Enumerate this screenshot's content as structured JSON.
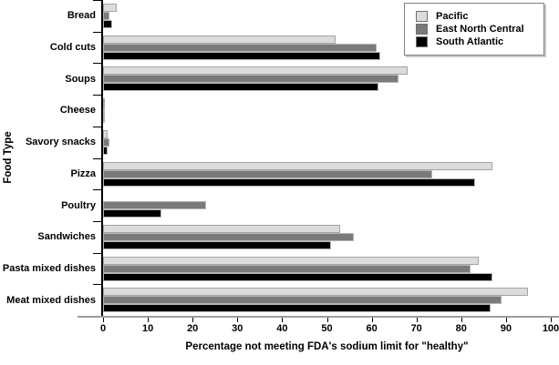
{
  "chart_data": {
    "type": "bar",
    "orientation": "horizontal",
    "title": "",
    "xlabel": "Percentage not meeting FDA's sodium limit for \"healthy\"",
    "ylabel": "Food Type",
    "xlim": [
      0,
      100
    ],
    "xticks": [
      0,
      10,
      20,
      30,
      40,
      50,
      60,
      70,
      80,
      90,
      100
    ],
    "grid": false,
    "legend_position": "top-right",
    "categories": [
      "Bread",
      "Cold cuts",
      "Soups",
      "Cheese",
      "Savory snacks",
      "Pizza",
      "Poultry",
      "Sandwiches",
      "Pasta mixed dishes",
      "Meat mixed dishes"
    ],
    "series": [
      {
        "name": "Pacific",
        "color": "#dcdcdc",
        "border_color": "#a3a3a3",
        "values": [
          3,
          52,
          68,
          0.3,
          1,
          87,
          0,
          53,
          84,
          95
        ]
      },
      {
        "name": "East North Central",
        "color": "#7a7a7a",
        "border_color": "#b5b5b5",
        "values": [
          1.5,
          61,
          66,
          0.5,
          1.5,
          73.5,
          23,
          56,
          82,
          89
        ]
      },
      {
        "name": "South Atlantic",
        "color": "#000000",
        "border_color": "#b5b5b5",
        "values": [
          2,
          62,
          61.5,
          0.3,
          1,
          83,
          13,
          51,
          87,
          86.5
        ]
      }
    ]
  }
}
